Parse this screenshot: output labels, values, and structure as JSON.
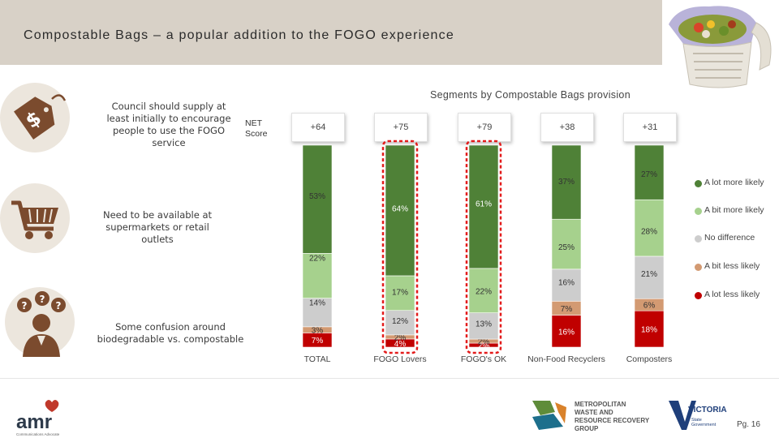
{
  "page": {
    "title": "Compostable Bags – a popular addition to the FOGO experience",
    "page_number": "Pg. 16"
  },
  "insights": [
    {
      "text": "Council should supply at least initially to encourage people to use the FOGO service",
      "icon": "price-tag-dollar-icon"
    },
    {
      "text": "Need to be available at supermarkets or retail outlets",
      "icon": "shopping-cart-icon"
    },
    {
      "text": "Some confusion around biodegradable vs. compostable",
      "icon": "confused-person-icon"
    }
  ],
  "logos": {
    "amr": {
      "text": "amr",
      "tagline": "Communications Advocate"
    },
    "metro_waste": {
      "line1": "METROPOLITAN",
      "line2": "WASTE AND",
      "line3": "RESOURCE RECOVERY",
      "line4": "GROUP"
    },
    "victoria": {
      "text": "VICTORIA",
      "sub1": "State",
      "sub2": "Government"
    }
  },
  "colors": {
    "a_lot_more": "#4f8137",
    "a_bit_more": "#a6d18d",
    "no_difference": "#cdcdcd",
    "a_bit_less": "#d39a72",
    "a_lot_less": "#c00000",
    "highlight": "#e31b1b",
    "header_band": "#d8d1c7"
  },
  "chart_data": {
    "type": "bar",
    "stacked": true,
    "title": "Segments by Compostable Bags provision",
    "net_label": "NET Score",
    "categories": [
      "TOTAL",
      "FOGO Lovers",
      "FOGO's OK",
      "Non-Food Recyclers",
      "Composters"
    ],
    "net_scores": [
      "+64",
      "+75",
      "+79",
      "+38",
      "+31"
    ],
    "highlighted": [
      false,
      true,
      true,
      false,
      false
    ],
    "series": [
      {
        "name": "A lot less likely",
        "color": "#c00000",
        "values": [
          7,
          4,
          2,
          16,
          18
        ],
        "labels": [
          "7%",
          "4%",
          "2%",
          "16%",
          "18%"
        ]
      },
      {
        "name": "A bit less likely",
        "color": "#d39a72",
        "values": [
          3,
          2,
          2,
          7,
          6
        ],
        "labels": [
          "3%",
          "2%",
          "2%",
          "7%",
          "6%"
        ]
      },
      {
        "name": "No difference",
        "color": "#cdcdcd",
        "values": [
          14,
          12,
          13,
          16,
          21
        ],
        "labels": [
          "14%",
          "12%",
          "13%",
          "16%",
          "21%"
        ]
      },
      {
        "name": "A bit more likely",
        "color": "#a6d18d",
        "values": [
          22,
          17,
          22,
          25,
          28
        ],
        "labels": [
          "22%",
          "17%",
          "22%",
          "25%",
          "28%"
        ]
      },
      {
        "name": "A lot more likely",
        "color": "#4f8137",
        "values": [
          53,
          64,
          61,
          37,
          27
        ],
        "labels": [
          "53%",
          "64%",
          "61%",
          "37%",
          "27%"
        ]
      }
    ],
    "legend_order": [
      "A lot more likely",
      "A bit more likely",
      "No difference",
      "A bit less likely",
      "A lot less likely"
    ],
    "legend_position": "right",
    "ylim": [
      0,
      100
    ],
    "grid": false
  }
}
